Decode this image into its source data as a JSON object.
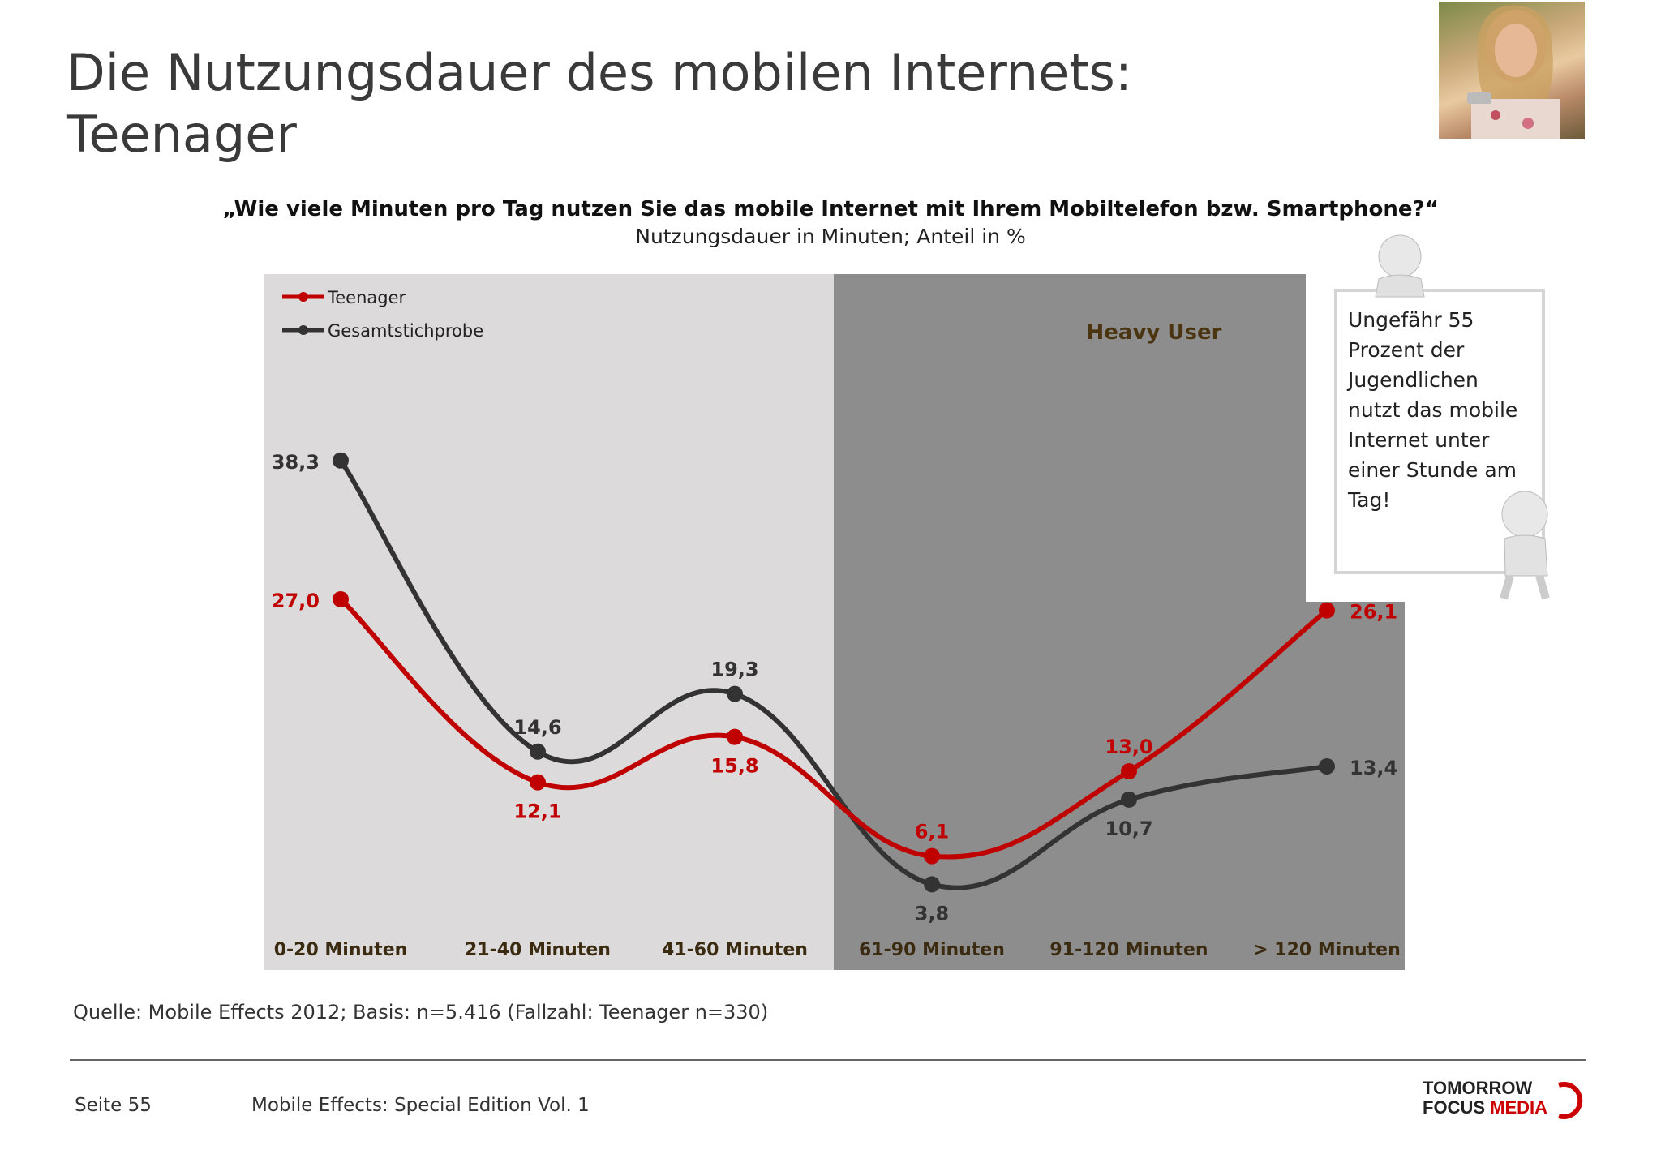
{
  "slide": {
    "title_line1": "Die Nutzungsdauer des mobilen Internets:",
    "title_line2": "Teenager"
  },
  "question": "„Wie viele Minuten pro Tag nutzen Sie das mobile Internet mit Ihrem Mobiltelefon bzw. Smartphone?“",
  "subtitle": "Nutzungsdauer in Minuten; Anteil in %",
  "chart_data": {
    "type": "line",
    "categories": [
      "0-20 Minuten",
      "21-40 Minuten",
      "41-60 Minuten",
      "61-90 Minuten",
      "91-120 Minuten",
      "> 120 Minuten"
    ],
    "series": [
      {
        "name": "Teenager",
        "values": [
          27.0,
          12.1,
          15.8,
          6.1,
          13.0,
          26.1
        ],
        "labels": [
          "27,0",
          "12,1",
          "15,8",
          "6,1",
          "13,0",
          "26,1"
        ],
        "color": "#c00000"
      },
      {
        "name": "Gesamtstichprobe",
        "values": [
          38.3,
          14.6,
          19.3,
          3.8,
          10.7,
          13.4
        ],
        "labels": [
          "38,3",
          "14,6",
          "19,3",
          "3,8",
          "10,7",
          "13,4"
        ],
        "color": "#333333"
      }
    ],
    "highlight_region": {
      "label": "Heavy User",
      "from_category": "61-90 Minuten",
      "to_category": "> 120 Minuten"
    },
    "legend_position": "top-left",
    "grid": false,
    "background_colors": {
      "light": "#dcdadb",
      "dark": "#8e8d8e"
    }
  },
  "note": {
    "text": "Ungefähr 55 Prozent der Jugendlichen nutzt das mobile Internet unter einer Stunde am Tag!"
  },
  "source": "Quelle: Mobile Effects 2012; Basis: n=5.416 (Fallzahl: Teenager n=330)",
  "footer": {
    "page": "Seite 55",
    "title": "Mobile Effects: Special Edition Vol. 1",
    "logo_line1": "TOMORROW",
    "logo_line2a": "FOCUS ",
    "logo_line2b": "MEDIA"
  }
}
